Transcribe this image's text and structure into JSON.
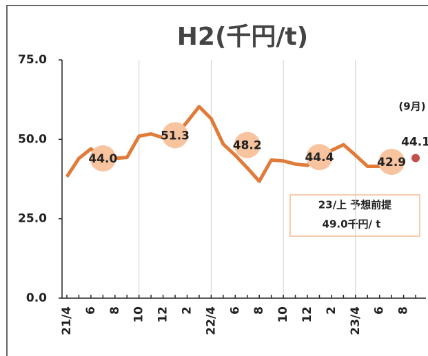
{
  "chart_data": {
    "type": "line",
    "title": "H2(千円/t)",
    "categories": [
      "21/4",
      null,
      "6",
      null,
      "8",
      null,
      "10",
      null,
      "12",
      null,
      "2",
      null,
      "22/4",
      null,
      "6",
      null,
      "8",
      null,
      "10",
      null,
      "12",
      null,
      "2",
      null,
      "23/4",
      null,
      "6",
      null,
      "8",
      null
    ],
    "series": [
      {
        "color": "#e07b39",
        "values": [
          38.2,
          44,
          47,
          44,
          44,
          44.3,
          51,
          51.7,
          50.5,
          51,
          55.5,
          60.3,
          56.5,
          48.5,
          45,
          41,
          36.8,
          43.5,
          43.2,
          42.2,
          41.8,
          44.4,
          46.5,
          48.3,
          45,
          41.5,
          41.5,
          42.5,
          43.5,
          null
        ]
      },
      {
        "color": "#f8c4a0",
        "values": [
          null,
          null,
          null,
          44.0,
          null,
          null,
          null,
          null,
          null,
          51.3,
          null,
          null,
          null,
          null,
          null,
          48.2,
          null,
          null,
          null,
          null,
          null,
          44.4,
          null,
          null,
          null,
          null,
          null,
          42.9,
          null,
          null
        ],
        "value_labels": [
          null,
          null,
          null,
          "44.0",
          null,
          null,
          null,
          null,
          null,
          "51.3",
          null,
          null,
          null,
          null,
          null,
          "48.2",
          null,
          null,
          null,
          null,
          null,
          "44.4",
          null,
          null,
          null,
          null,
          null,
          "42.9",
          null,
          null
        ]
      },
      {
        "color": "#c0504d",
        "values": [
          null,
          null,
          null,
          null,
          null,
          null,
          null,
          null,
          null,
          null,
          null,
          null,
          null,
          null,
          null,
          null,
          null,
          null,
          null,
          null,
          null,
          null,
          null,
          null,
          null,
          null,
          null,
          null,
          null,
          44.1
        ]
      }
    ],
    "ylim": [
      0,
      75
    ],
    "yticks": [
      {
        "value": 0,
        "label": "0.0"
      },
      {
        "value": 25,
        "label": "25.0"
      },
      {
        "value": 50,
        "label": "50.0"
      },
      {
        "value": 75,
        "label": "75.0"
      }
    ],
    "annotations": [
      "(9月)",
      "23/上 予想前提",
      "49.0千円/ t"
    ]
  }
}
